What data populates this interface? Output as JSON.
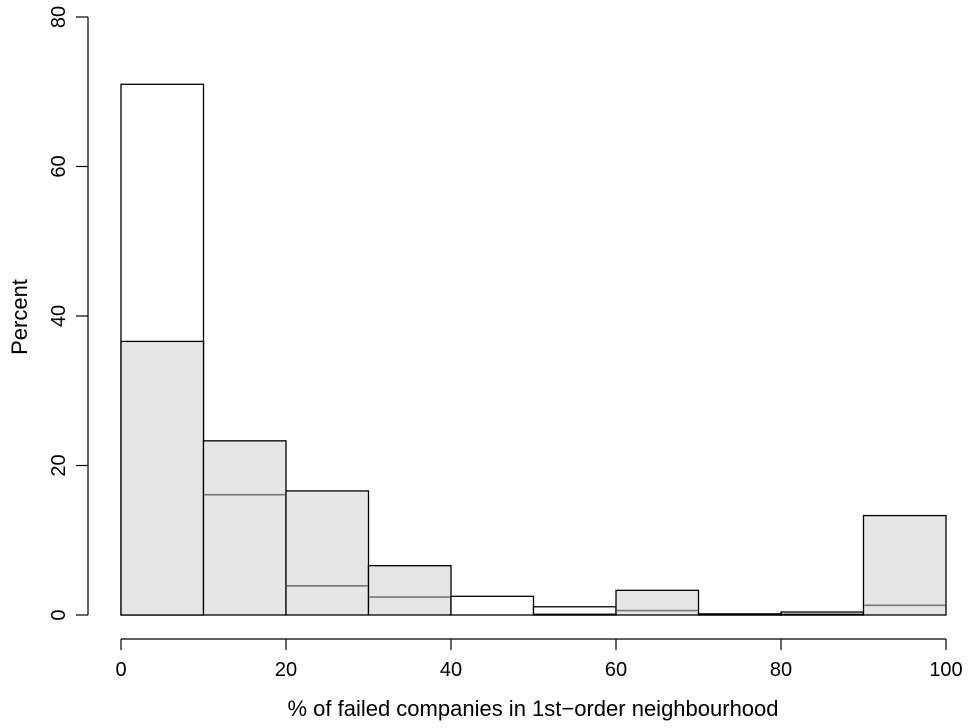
{
  "chart_data": {
    "type": "bar",
    "xlabel": "% of failed companies in 1st−order neighbourhood",
    "ylabel": "Percent",
    "xlim": [
      0,
      100
    ],
    "ylim": [
      0,
      80
    ],
    "x_ticks": [
      "0",
      "20",
      "40",
      "60",
      "80",
      "100"
    ],
    "y_ticks": [
      "0",
      "20",
      "40",
      "60",
      "80"
    ],
    "bins": [
      {
        "from": 0,
        "to": 10,
        "outline": 71.0,
        "shaded": 36.6,
        "inner": null
      },
      {
        "from": 10,
        "to": 20,
        "outline": null,
        "shaded": 23.3,
        "inner": 16.1
      },
      {
        "from": 20,
        "to": 30,
        "outline": null,
        "shaded": 16.6,
        "inner": 3.9
      },
      {
        "from": 30,
        "to": 40,
        "outline": null,
        "shaded": 6.6,
        "inner": 2.4
      },
      {
        "from": 40,
        "to": 50,
        "outline": 2.5,
        "shaded": null,
        "inner": null
      },
      {
        "from": 50,
        "to": 60,
        "outline": 1.1,
        "shaded": 0.1,
        "inner": null
      },
      {
        "from": 60,
        "to": 70,
        "outline": null,
        "shaded": 3.3,
        "inner": 0.6
      },
      {
        "from": 70,
        "to": 80,
        "outline": 0.15,
        "shaded": 0.05,
        "inner": null
      },
      {
        "from": 80,
        "to": 90,
        "outline": 0.4,
        "shaded": 0.1,
        "inner": null
      },
      {
        "from": 90,
        "to": 100,
        "outline": null,
        "shaded": 13.3,
        "inner": 1.3
      }
    ],
    "grid": false,
    "legend": "none"
  }
}
